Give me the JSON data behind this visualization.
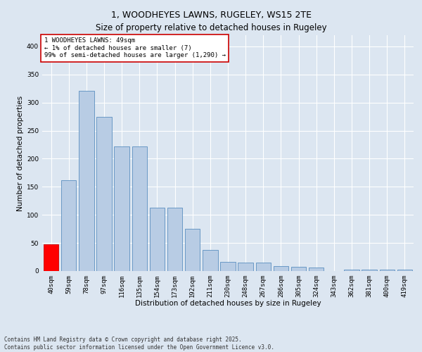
{
  "title": "1, WOODHEYES LAWNS, RUGELEY, WS15 2TE",
  "subtitle": "Size of property relative to detached houses in Rugeley",
  "xlabel": "Distribution of detached houses by size in Rugeley",
  "ylabel": "Number of detached properties",
  "categories": [
    "40sqm",
    "59sqm",
    "78sqm",
    "97sqm",
    "116sqm",
    "135sqm",
    "154sqm",
    "173sqm",
    "192sqm",
    "211sqm",
    "230sqm",
    "248sqm",
    "267sqm",
    "286sqm",
    "305sqm",
    "324sqm",
    "343sqm",
    "362sqm",
    "381sqm",
    "400sqm",
    "419sqm"
  ],
  "values": [
    48,
    162,
    321,
    275,
    222,
    222,
    113,
    113,
    75,
    38,
    16,
    15,
    15,
    9,
    8,
    6,
    0,
    3,
    3,
    3,
    2
  ],
  "bar_color": "#b8cce4",
  "bar_edge_color": "#5a8fc0",
  "highlight_bar_index": 0,
  "highlight_bar_color": "#ff0000",
  "highlight_bar_edge_color": "#cc0000",
  "ylim": [
    0,
    420
  ],
  "yticks": [
    0,
    50,
    100,
    150,
    200,
    250,
    300,
    350,
    400
  ],
  "background_color": "#dce6f1",
  "plot_bg_color": "#dce6f1",
  "grid_color": "#ffffff",
  "annotation_text": "1 WOODHEYES LAWNS: 49sqm\n← 1% of detached houses are smaller (7)\n99% of semi-detached houses are larger (1,290) →",
  "annotation_box_color": "#ffffff",
  "annotation_box_edge": "#cc0000",
  "footer_text": "Contains HM Land Registry data © Crown copyright and database right 2025.\nContains public sector information licensed under the Open Government Licence v3.0.",
  "title_fontsize": 9,
  "subtitle_fontsize": 8.5,
  "xlabel_fontsize": 7.5,
  "ylabel_fontsize": 7.5,
  "tick_fontsize": 6.5,
  "annotation_fontsize": 6.5,
  "footer_fontsize": 5.5
}
